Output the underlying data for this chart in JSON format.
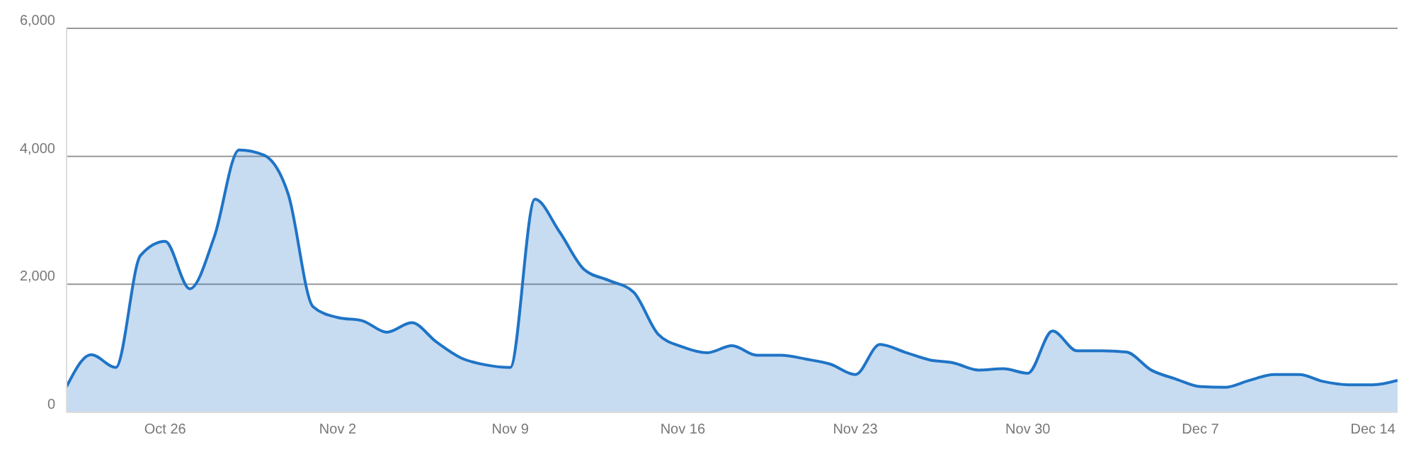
{
  "chart_data": {
    "type": "area",
    "x": [
      "--10-22",
      "--10-23",
      "--10-24",
      "--10-25",
      "--10-26",
      "--10-27",
      "--10-28",
      "--10-29",
      "--10-30",
      "--10-31",
      "--11-01",
      "--11-02",
      "--11-03",
      "--11-04",
      "--11-05",
      "--11-06",
      "--11-07",
      "--11-08",
      "--11-09",
      "--11-10",
      "--11-11",
      "--11-12",
      "--11-13",
      "--11-14",
      "--11-15",
      "--11-16",
      "--11-17",
      "--11-18",
      "--11-19",
      "--11-20",
      "--11-21",
      "--11-22",
      "--11-23",
      "--11-24",
      "--11-25",
      "--11-26",
      "--11-27",
      "--11-28",
      "--11-29",
      "--11-30",
      "--12-01",
      "--12-02",
      "--12-03",
      "--12-04",
      "--12-05",
      "--12-06",
      "--12-07",
      "--12-08",
      "--12-09",
      "--12-10",
      "--12-11",
      "--12-12",
      "--12-13",
      "--12-14",
      "--12-15"
    ],
    "series": [
      {
        "color": "#1f74c6",
        "values": [
          400,
          900,
          700,
          2450,
          2670,
          1930,
          2750,
          4100,
          4020,
          3400,
          1650,
          1480,
          1430,
          1250,
          1400,
          1100,
          850,
          740,
          700,
          3330,
          2820,
          2230,
          2060,
          1880,
          1220,
          1020,
          930,
          1040,
          890,
          890,
          830,
          750,
          590,
          1060,
          940,
          820,
          770,
          660,
          680,
          610,
          1270,
          960,
          960,
          940,
          660,
          520,
          400,
          390,
          500,
          590,
          590,
          480,
          430,
          430,
          500
        ]
      }
    ],
    "xlim": [
      "--10-22",
      "--12-15"
    ],
    "xticks": [
      {
        "value": "--10-26",
        "label": "Oct 26"
      },
      {
        "value": "--11-02",
        "label": "Nov 2"
      },
      {
        "value": "--11-09",
        "label": "Nov 9"
      },
      {
        "value": "--11-16",
        "label": "Nov 16"
      },
      {
        "value": "--11-23",
        "label": "Nov 23"
      },
      {
        "value": "--11-30",
        "label": "Nov 30"
      },
      {
        "value": "--12-07",
        "label": "Dec 7"
      },
      {
        "value": "--12-14",
        "label": "Dec 14"
      }
    ],
    "ylim": [
      0,
      6000
    ],
    "yticks": [
      0,
      {
        "value": 2000,
        "label": "2,000"
      },
      {
        "value": 4000,
        "label": "4,000"
      },
      {
        "value": 6000,
        "label": "6,000"
      }
    ],
    "grid": "y",
    "legend": false,
    "marker": "none",
    "line_style": "solid"
  }
}
